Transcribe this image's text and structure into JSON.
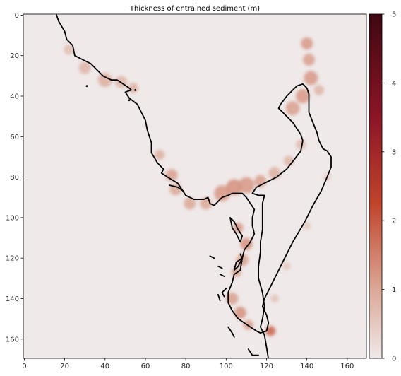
{
  "chart_data": {
    "type": "heatmap",
    "title": "Thickness of entrained sediment (m)",
    "xlabel": "",
    "ylabel": "",
    "x_ticks": [
      "0",
      "20",
      "40",
      "60",
      "80",
      "100",
      "120",
      "140",
      "160"
    ],
    "y_ticks": [
      "0",
      "20",
      "40",
      "60",
      "80",
      "100",
      "120",
      "140",
      "160"
    ],
    "xlim": [
      -0.5,
      169.5
    ],
    "ylim": [
      169.5,
      -0.5
    ],
    "colorbar": {
      "ticks": [
        "0",
        "1",
        "2",
        "3",
        "4",
        "5"
      ],
      "range": [
        0,
        5
      ],
      "colors": [
        "#efe9e9",
        "#dba897",
        "#c0442c",
        "#8c1527",
        "#3e0811"
      ]
    },
    "deposits": [
      {
        "x": 22,
        "y": 17,
        "r": 2.5,
        "v": 0.7
      },
      {
        "x": 30,
        "y": 26,
        "r": 3,
        "v": 0.8
      },
      {
        "x": 40,
        "y": 32,
        "r": 3.5,
        "v": 0.9
      },
      {
        "x": 48,
        "y": 33,
        "r": 3,
        "v": 0.8
      },
      {
        "x": 54,
        "y": 36,
        "r": 2.5,
        "v": 0.9
      },
      {
        "x": 67,
        "y": 69,
        "r": 2.5,
        "v": 0.9
      },
      {
        "x": 73,
        "y": 79,
        "r": 3,
        "v": 1.1
      },
      {
        "x": 75,
        "y": 86,
        "r": 3,
        "v": 1.0
      },
      {
        "x": 82,
        "y": 93,
        "r": 3,
        "v": 1.0
      },
      {
        "x": 90,
        "y": 93,
        "r": 3,
        "v": 1.0
      },
      {
        "x": 98,
        "y": 88,
        "r": 4,
        "v": 1.2
      },
      {
        "x": 104,
        "y": 85,
        "r": 4,
        "v": 1.3
      },
      {
        "x": 110,
        "y": 84,
        "r": 4,
        "v": 1.2
      },
      {
        "x": 117,
        "y": 82,
        "r": 3,
        "v": 1.1
      },
      {
        "x": 124,
        "y": 78,
        "r": 3,
        "v": 0.9
      },
      {
        "x": 131,
        "y": 72,
        "r": 2.5,
        "v": 0.8
      },
      {
        "x": 137,
        "y": 64,
        "r": 2.5,
        "v": 0.7
      },
      {
        "x": 133,
        "y": 46,
        "r": 3.5,
        "v": 1.1
      },
      {
        "x": 138,
        "y": 40,
        "r": 3.5,
        "v": 1.2
      },
      {
        "x": 142,
        "y": 31,
        "r": 3.5,
        "v": 1.2
      },
      {
        "x": 141,
        "y": 22,
        "r": 3,
        "v": 1.1
      },
      {
        "x": 140,
        "y": 14,
        "r": 3,
        "v": 1.2
      },
      {
        "x": 146,
        "y": 37,
        "r": 2.5,
        "v": 0.8
      },
      {
        "x": 106,
        "y": 105,
        "r": 2.5,
        "v": 1.2
      },
      {
        "x": 110,
        "y": 113,
        "r": 3,
        "v": 1.3
      },
      {
        "x": 108,
        "y": 121,
        "r": 3,
        "v": 1.1
      },
      {
        "x": 105,
        "y": 127,
        "r": 2.5,
        "v": 1.0
      },
      {
        "x": 103,
        "y": 140,
        "r": 3,
        "v": 1.1
      },
      {
        "x": 107,
        "y": 147,
        "r": 3,
        "v": 1.3
      },
      {
        "x": 111,
        "y": 153,
        "r": 2.5,
        "v": 1.1
      },
      {
        "x": 122,
        "y": 156,
        "r": 2.5,
        "v": 1.8
      },
      {
        "x": 124,
        "y": 140,
        "r": 2,
        "v": 0.6
      },
      {
        "x": 130,
        "y": 124,
        "r": 2,
        "v": 0.5
      },
      {
        "x": 140,
        "y": 104,
        "r": 2,
        "v": 0.5
      },
      {
        "x": 150,
        "y": 80,
        "r": 2,
        "v": 0.4
      }
    ],
    "coastline_main": [
      [
        16,
        0
      ],
      [
        17,
        3
      ],
      [
        20,
        8
      ],
      [
        21,
        12
      ],
      [
        24,
        15
      ],
      [
        25,
        20
      ],
      [
        29,
        22
      ],
      [
        33,
        24
      ],
      [
        36,
        27
      ],
      [
        39,
        30
      ],
      [
        43,
        32
      ],
      [
        46,
        32
      ],
      [
        49,
        34
      ],
      [
        52,
        36
      ],
      [
        53,
        37
      ],
      [
        50,
        38
      ],
      [
        52,
        41
      ],
      [
        56,
        44
      ],
      [
        58,
        48
      ],
      [
        60,
        52
      ],
      [
        61,
        57
      ],
      [
        62,
        60
      ],
      [
        63,
        63
      ],
      [
        63,
        68
      ],
      [
        66,
        73
      ],
      [
        69,
        76
      ],
      [
        68,
        78
      ],
      [
        71,
        80
      ],
      [
        76,
        83
      ],
      [
        78,
        86
      ],
      [
        80,
        89
      ],
      [
        84,
        91
      ],
      [
        89,
        91
      ],
      [
        91,
        90
      ],
      [
        92,
        93
      ],
      [
        94,
        94
      ],
      [
        96,
        92
      ],
      [
        98,
        90
      ],
      [
        101,
        89
      ],
      [
        103,
        88
      ],
      [
        108,
        88
      ],
      [
        110,
        90
      ],
      [
        112,
        93
      ],
      [
        114,
        96
      ],
      [
        113,
        100
      ],
      [
        113,
        104
      ],
      [
        114,
        108
      ],
      [
        112,
        112
      ],
      [
        109,
        116
      ],
      [
        108,
        120
      ],
      [
        107,
        126
      ],
      [
        104,
        128
      ],
      [
        103,
        132
      ],
      [
        101,
        137
      ],
      [
        101,
        142
      ],
      [
        103,
        146
      ],
      [
        106,
        150
      ],
      [
        109,
        152
      ],
      [
        112,
        154
      ],
      [
        115,
        156
      ],
      [
        117,
        157
      ],
      [
        120,
        156
      ],
      [
        121,
        152
      ],
      [
        120,
        148
      ],
      [
        118,
        144
      ],
      [
        119,
        140
      ],
      [
        122,
        134
      ],
      [
        125,
        128
      ],
      [
        129,
        120
      ],
      [
        133,
        112
      ],
      [
        139,
        102
      ],
      [
        143,
        94
      ],
      [
        147,
        87
      ],
      [
        150,
        80
      ],
      [
        152,
        75
      ],
      [
        152,
        70
      ],
      [
        150,
        67
      ],
      [
        148,
        66
      ],
      [
        146,
        62
      ],
      [
        145,
        58
      ],
      [
        143,
        53
      ],
      [
        141,
        48
      ],
      [
        141,
        43
      ],
      [
        141,
        39
      ],
      [
        140,
        36
      ],
      [
        138,
        34
      ],
      [
        135,
        35
      ],
      [
        133,
        37
      ],
      [
        130,
        40
      ],
      [
        127,
        44
      ],
      [
        126,
        46
      ],
      [
        128,
        48
      ],
      [
        131,
        51
      ],
      [
        133,
        53
      ],
      [
        135,
        56
      ],
      [
        137,
        59
      ],
      [
        138,
        62
      ],
      [
        137,
        67
      ],
      [
        134,
        71
      ],
      [
        130,
        76
      ],
      [
        125,
        80
      ],
      [
        119,
        83
      ],
      [
        115,
        85
      ],
      [
        113,
        88
      ],
      [
        116,
        89
      ],
      [
        119,
        89
      ],
      [
        118,
        93
      ],
      [
        118,
        100
      ],
      [
        118,
        106
      ],
      [
        117,
        112
      ],
      [
        117,
        117
      ],
      [
        116,
        124
      ],
      [
        116,
        130
      ],
      [
        118,
        137
      ],
      [
        119,
        144
      ],
      [
        118,
        150
      ],
      [
        117,
        154
      ],
      [
        119,
        158
      ],
      [
        120,
        164
      ],
      [
        121,
        170
      ]
    ],
    "coastline_island_a": [
      [
        102,
        100
      ],
      [
        104,
        102
      ],
      [
        106,
        106
      ],
      [
        108,
        109
      ],
      [
        107,
        112
      ],
      [
        105,
        108
      ],
      [
        103,
        105
      ],
      [
        102,
        100
      ]
    ],
    "coastline_island_b": [
      [
        107,
        118
      ],
      [
        108,
        120
      ],
      [
        105,
        122
      ],
      [
        104,
        126
      ],
      [
        106,
        124
      ],
      [
        108,
        120
      ]
    ],
    "coastline_island_c": [
      [
        101,
        154
      ],
      [
        103,
        157
      ],
      [
        104,
        159
      ]
    ],
    "coastline_fragments": [
      [
        [
          100,
          135
        ],
        [
          98,
          137
        ],
        [
          99,
          139
        ]
      ],
      [
        [
          96,
          124
        ],
        [
          98,
          125
        ]
      ],
      [
        [
          97,
          128
        ],
        [
          99,
          129
        ]
      ],
      [
        [
          92,
          119
        ],
        [
          94,
          120
        ]
      ],
      [
        [
          96,
          138
        ],
        [
          97,
          141
        ]
      ],
      [
        [
          72,
          84
        ],
        [
          76,
          85
        ],
        [
          79,
          87
        ]
      ],
      [
        [
          111,
          165
        ],
        [
          113,
          168
        ],
        [
          116,
          168
        ]
      ]
    ],
    "coastline_dots": [
      {
        "x": 31,
        "y": 35
      },
      {
        "x": 52,
        "y": 42
      },
      {
        "x": 55,
        "y": 37
      }
    ]
  }
}
